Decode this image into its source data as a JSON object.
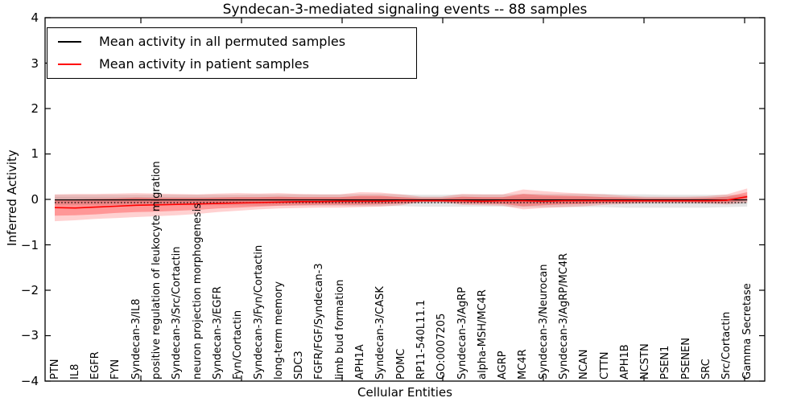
{
  "title": "Syndecan-3-mediated signaling events -- 88 samples",
  "legend": {
    "items": [
      {
        "label": "Mean activity in all permuted samples",
        "color": "#000000"
      },
      {
        "label": "Mean activity in patient samples",
        "color": "#ff0000"
      }
    ]
  },
  "chart_data": {
    "type": "line",
    "title": "Syndecan-3-mediated signaling events -- 88 samples",
    "xlabel": "Cellular Entities",
    "ylabel": "Inferred Activity",
    "ylim": [
      -4,
      4
    ],
    "yticks": [
      4,
      3,
      2,
      1,
      0,
      -1,
      -2,
      -3,
      -4
    ],
    "ytick_labels": [
      "4",
      "3",
      "2",
      "1",
      "0",
      "−1",
      "−2",
      "−3",
      "−4"
    ],
    "grid": false,
    "legend_position": "upper left",
    "categories": [
      "PTN",
      "IL8",
      "EGFR",
      "FYN",
      "Syndecan-3/IL8",
      "positive regulation of leukocyte migration",
      "Syndecan-3/Src/Cortactin",
      "neuron projection morphogenesis",
      "Syndecan-3/EGFR",
      "Fyn/Cortactin",
      "Syndecan-3/Fyn/Cortactin",
      "long-term memory",
      "SDC3",
      "FGFR/FGF/Syndecan-3",
      "limb bud formation",
      "APH1A",
      "Syndecan-3/CASK",
      "POMC",
      "RP11-540L11.1",
      "GO:0007205",
      "Syndecan-3/AgRP",
      "alpha-MSH/MC4R",
      "AGRP",
      "MC4R",
      "Syndecan-3/Neurocan",
      "Syndecan-3/AgRP/MC4R",
      "NCAN",
      "CTTN",
      "APH1B",
      "NCSTN",
      "PSEN1",
      "PSENEN",
      "SRC",
      "Src/Cortactin",
      "Gamma Secretase"
    ],
    "series": [
      {
        "key": "permuted-mean-line",
        "name": "Mean activity in all permuted samples",
        "color": "#000000",
        "style": "solid",
        "width": 1.3,
        "values": [
          -0.01,
          -0.01,
          -0.01,
          -0.01,
          -0.01,
          -0.01,
          -0.01,
          -0.01,
          -0.01,
          -0.01,
          -0.01,
          -0.01,
          -0.01,
          -0.01,
          -0.01,
          -0.01,
          -0.01,
          -0.01,
          -0.01,
          -0.01,
          -0.01,
          -0.01,
          -0.01,
          -0.01,
          -0.01,
          -0.01,
          -0.01,
          -0.01,
          -0.01,
          -0.01,
          -0.01,
          -0.01,
          -0.01,
          -0.01,
          -0.01
        ]
      },
      {
        "key": "permuted-dotted-baseline",
        "name": "Permuted baseline (dotted)",
        "color": "#000000",
        "style": "dotted",
        "width": 1.2,
        "values": [
          -0.07,
          -0.07,
          -0.07,
          -0.07,
          -0.07,
          -0.07,
          -0.07,
          -0.07,
          -0.07,
          -0.07,
          -0.07,
          -0.07,
          -0.07,
          -0.07,
          -0.07,
          -0.07,
          -0.07,
          -0.07,
          -0.07,
          -0.07,
          -0.07,
          -0.07,
          -0.07,
          -0.07,
          -0.07,
          -0.07,
          -0.07,
          -0.07,
          -0.07,
          -0.07,
          -0.07,
          -0.07,
          -0.07,
          -0.07,
          -0.07
        ]
      },
      {
        "key": "patient-mean-line",
        "name": "Mean activity in patient samples",
        "color": "#ff0000",
        "style": "solid",
        "width": 1.6,
        "values": [
          -0.18,
          -0.19,
          -0.17,
          -0.15,
          -0.13,
          -0.12,
          -0.11,
          -0.1,
          -0.09,
          -0.08,
          -0.07,
          -0.06,
          -0.05,
          -0.05,
          -0.04,
          -0.04,
          -0.04,
          -0.03,
          -0.03,
          -0.03,
          -0.03,
          -0.04,
          -0.03,
          -0.03,
          -0.04,
          -0.03,
          -0.03,
          -0.03,
          -0.03,
          -0.03,
          -0.03,
          -0.03,
          -0.03,
          -0.02,
          0.06
        ]
      }
    ],
    "bands": [
      {
        "name": "permuted-band-outer",
        "color": "rgba(0,0,0,0.10)",
        "upper": [
          0.1,
          0.1,
          0.1,
          0.1,
          0.1,
          0.1,
          0.1,
          0.1,
          0.1,
          0.1,
          0.11,
          0.11,
          0.11,
          0.11,
          0.11,
          0.12,
          0.12,
          0.11,
          0.1,
          0.1,
          0.11,
          0.11,
          0.11,
          0.12,
          0.12,
          0.12,
          0.12,
          0.12,
          0.11,
          0.11,
          0.1,
          0.1,
          0.1,
          0.1,
          0.09
        ],
        "lower": [
          -0.13,
          -0.13,
          -0.13,
          -0.13,
          -0.13,
          -0.13,
          -0.13,
          -0.13,
          -0.13,
          -0.13,
          -0.14,
          -0.14,
          -0.14,
          -0.14,
          -0.14,
          -0.15,
          -0.15,
          -0.15,
          -0.16,
          -0.16,
          -0.16,
          -0.16,
          -0.16,
          -0.17,
          -0.17,
          -0.17,
          -0.17,
          -0.17,
          -0.18,
          -0.18,
          -0.18,
          -0.18,
          -0.18,
          -0.17,
          -0.16
        ]
      },
      {
        "name": "permuted-band-inner",
        "color": "rgba(0,0,0,0.08)",
        "upper": [
          0.05,
          0.05,
          0.05,
          0.05,
          0.05,
          0.05,
          0.05,
          0.05,
          0.05,
          0.05,
          0.05,
          0.05,
          0.05,
          0.05,
          0.05,
          0.05,
          0.05,
          0.05,
          0.05,
          0.05,
          0.05,
          0.05,
          0.05,
          0.05,
          0.05,
          0.05,
          0.05,
          0.05,
          0.05,
          0.05,
          0.05,
          0.05,
          0.05,
          0.05,
          0.05
        ],
        "lower": [
          -0.08,
          -0.08,
          -0.08,
          -0.08,
          -0.08,
          -0.08,
          -0.08,
          -0.08,
          -0.08,
          -0.08,
          -0.08,
          -0.08,
          -0.08,
          -0.08,
          -0.08,
          -0.08,
          -0.08,
          -0.09,
          -0.09,
          -0.09,
          -0.09,
          -0.09,
          -0.09,
          -0.09,
          -0.09,
          -0.09,
          -0.09,
          -0.09,
          -0.1,
          -0.1,
          -0.1,
          -0.1,
          -0.1,
          -0.1,
          -0.1
        ]
      },
      {
        "name": "patient-band-outer",
        "color": "rgba(255,0,0,0.18)",
        "upper": [
          0.11,
          0.12,
          0.12,
          0.13,
          0.14,
          0.13,
          0.12,
          0.11,
          0.13,
          0.14,
          0.13,
          0.14,
          0.12,
          0.11,
          0.11,
          0.16,
          0.15,
          0.11,
          0.06,
          0.06,
          0.12,
          0.11,
          0.11,
          0.22,
          0.18,
          0.15,
          0.13,
          0.11,
          0.08,
          0.06,
          0.06,
          0.06,
          0.07,
          0.11,
          0.24
        ],
        "lower": [
          -0.48,
          -0.46,
          -0.43,
          -0.41,
          -0.39,
          -0.37,
          -0.35,
          -0.32,
          -0.28,
          -0.25,
          -0.22,
          -0.2,
          -0.19,
          -0.18,
          -0.18,
          -0.17,
          -0.16,
          -0.13,
          -0.06,
          -0.06,
          -0.12,
          -0.13,
          -0.14,
          -0.22,
          -0.19,
          -0.17,
          -0.15,
          -0.12,
          -0.1,
          -0.08,
          -0.08,
          -0.08,
          -0.09,
          -0.11,
          -0.07
        ]
      },
      {
        "name": "patient-band-inner",
        "color": "rgba(255,0,0,0.28)",
        "upper": [
          -0.01,
          0.0,
          0.01,
          0.02,
          0.04,
          0.03,
          0.03,
          0.03,
          0.04,
          0.05,
          0.05,
          0.06,
          0.05,
          0.05,
          0.05,
          0.08,
          0.08,
          0.05,
          0.02,
          0.02,
          0.06,
          0.05,
          0.05,
          0.12,
          0.09,
          0.08,
          0.07,
          0.05,
          0.04,
          0.02,
          0.02,
          0.02,
          0.03,
          0.06,
          0.16
        ],
        "lower": [
          -0.36,
          -0.35,
          -0.33,
          -0.3,
          -0.28,
          -0.27,
          -0.25,
          -0.23,
          -0.2,
          -0.18,
          -0.16,
          -0.14,
          -0.13,
          -0.12,
          -0.12,
          -0.12,
          -0.11,
          -0.09,
          -0.05,
          -0.05,
          -0.08,
          -0.09,
          -0.1,
          -0.15,
          -0.13,
          -0.11,
          -0.1,
          -0.08,
          -0.07,
          -0.06,
          -0.06,
          -0.06,
          -0.07,
          -0.07,
          -0.02
        ]
      }
    ]
  }
}
